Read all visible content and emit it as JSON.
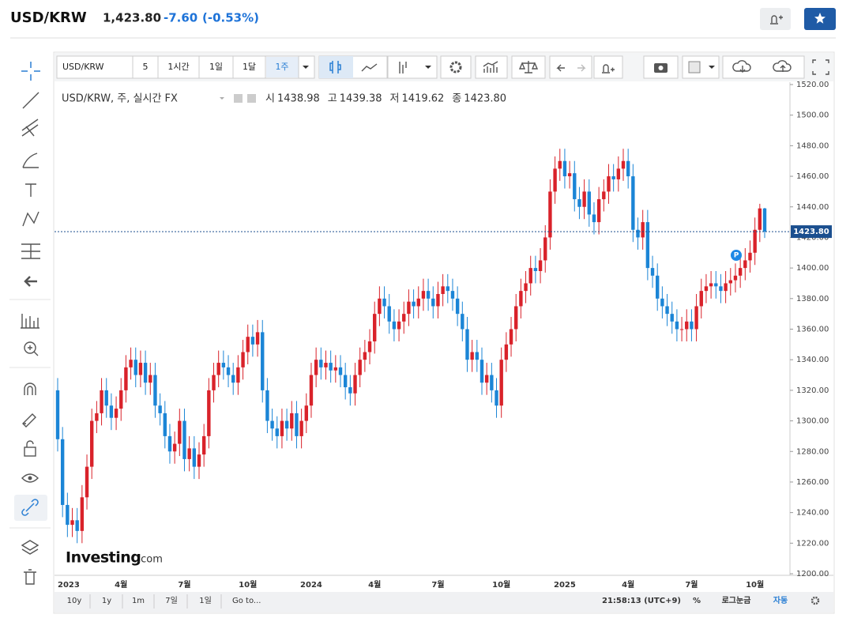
{
  "header": {
    "symbol": "USD/KRW",
    "price": "1,423.80",
    "change": "-7.60",
    "change_pct": "(-0.53%)"
  },
  "toolbar": {
    "symbol": "USD/KRW",
    "interval": "5",
    "ranges": [
      "1시간",
      "1일",
      "1달",
      "1주"
    ],
    "active_range": "1주"
  },
  "logo": [
    "Investing",
    ".com"
  ],
  "footer": {
    "periods": [
      "10y",
      "1y",
      "1m",
      "7일",
      "1일"
    ],
    "goto": "Go to...",
    "time": "21:58:13 (UTC+9)",
    "percent": "%",
    "log": "로그눈금",
    "auto": "자동"
  },
  "chart_data": {
    "type": "candlestick",
    "legend_title": "USD/KRW, 주, 실시간 FX",
    "ohlc_legend": [
      {
        "label": "시",
        "value": "1438.98"
      },
      {
        "label": "고",
        "value": "1439.38"
      },
      {
        "label": "저",
        "value": "1419.62"
      },
      {
        "label": "종",
        "value": "1423.80"
      }
    ],
    "last_price_label": "1423.80",
    "up_color": "#d9222a",
    "down_color": "#1b85d6",
    "categories": [
      "2023",
      null,
      null,
      null,
      null,
      null,
      null,
      null,
      null,
      null,
      null,
      null,
      null,
      "4월",
      null,
      null,
      null,
      null,
      null,
      null,
      null,
      null,
      null,
      null,
      null,
      null,
      "7월",
      null,
      null,
      null,
      null,
      null,
      null,
      null,
      null,
      null,
      null,
      null,
      null,
      "10월",
      null,
      null,
      null,
      null,
      null,
      null,
      null,
      null,
      null,
      null,
      null,
      null,
      "2024",
      null,
      null,
      null,
      null,
      null,
      null,
      null,
      null,
      null,
      null,
      null,
      null,
      "4월",
      null,
      null,
      null,
      null,
      null,
      null,
      null,
      null,
      null,
      null,
      null,
      null,
      "7월",
      null,
      null,
      null,
      null,
      null,
      null,
      null,
      null,
      null,
      null,
      null,
      null,
      "10월",
      null,
      null,
      null,
      null,
      null,
      null,
      null,
      null,
      null,
      null,
      null,
      null,
      "2025",
      null,
      null,
      null,
      null,
      null,
      null,
      null,
      null,
      null,
      null,
      null,
      null,
      "4월",
      null,
      null,
      null,
      null,
      null,
      null,
      null,
      null,
      null,
      null,
      null,
      null,
      "7월",
      null,
      null,
      null,
      null,
      null,
      null,
      null,
      null,
      null,
      null,
      null,
      null,
      "10월",
      null,
      null
    ],
    "open": [
      1320,
      1288,
      1245,
      1232,
      1235,
      1228,
      1250,
      1270,
      1300,
      1305,
      1320,
      1310,
      1302,
      1308,
      1320,
      1335,
      1340,
      1330,
      1338,
      1325,
      1330,
      1310,
      1305,
      1290,
      1280,
      1285,
      1300,
      1275,
      1282,
      1270,
      1278,
      1290,
      1320,
      1330,
      1338,
      1335,
      1330,
      1325,
      1335,
      1345,
      1355,
      1350,
      1358,
      1320,
      1300,
      1295,
      1290,
      1300,
      1295,
      1305,
      1290,
      1300,
      1310,
      1330,
      1340,
      1335,
      1338,
      1333,
      1335,
      1330,
      1322,
      1318,
      1330,
      1340,
      1345,
      1352,
      1370,
      1380,
      1375,
      1365,
      1360,
      1365,
      1370,
      1378,
      1375,
      1380,
      1385,
      1380,
      1375,
      1383,
      1388,
      1385,
      1380,
      1370,
      1360,
      1340,
      1345,
      1340,
      1325,
      1330,
      1320,
      1310,
      1340,
      1350,
      1360,
      1375,
      1385,
      1390,
      1400,
      1398,
      1405,
      1420,
      1450,
      1465,
      1470,
      1460,
      1462,
      1445,
      1440,
      1450,
      1435,
      1430,
      1445,
      1450,
      1460,
      1458,
      1465,
      1470,
      1460,
      1425,
      1420,
      1430,
      1400,
      1395,
      1380,
      1375,
      1370,
      1365,
      1360,
      1360,
      1365,
      1360,
      1375,
      1385,
      1388,
      1390,
      1388,
      1385,
      1390,
      1392,
      1395,
      1400,
      1405,
      1410,
      1425,
      1438.98
    ],
    "high": [
      1328,
      1296,
      1253,
      1243,
      1243,
      1258,
      1278,
      1308,
      1313,
      1328,
      1328,
      1318,
      1316,
      1328,
      1343,
      1348,
      1348,
      1346,
      1346,
      1338,
      1338,
      1318,
      1313,
      1298,
      1293,
      1308,
      1308,
      1290,
      1290,
      1286,
      1298,
      1328,
      1338,
      1346,
      1346,
      1343,
      1338,
      1343,
      1353,
      1363,
      1363,
      1366,
      1366,
      1328,
      1308,
      1303,
      1308,
      1308,
      1313,
      1313,
      1308,
      1318,
      1338,
      1348,
      1348,
      1346,
      1346,
      1343,
      1343,
      1338,
      1330,
      1338,
      1348,
      1353,
      1360,
      1378,
      1388,
      1388,
      1383,
      1373,
      1373,
      1378,
      1386,
      1386,
      1388,
      1393,
      1393,
      1388,
      1391,
      1396,
      1396,
      1393,
      1388,
      1378,
      1368,
      1353,
      1353,
      1348,
      1338,
      1338,
      1328,
      1348,
      1358,
      1368,
      1383,
      1393,
      1398,
      1408,
      1408,
      1413,
      1428,
      1458,
      1473,
      1478,
      1478,
      1470,
      1470,
      1453,
      1458,
      1458,
      1443,
      1453,
      1458,
      1468,
      1468,
      1473,
      1478,
      1478,
      1468,
      1433,
      1438,
      1438,
      1408,
      1403,
      1388,
      1383,
      1378,
      1373,
      1368,
      1373,
      1373,
      1383,
      1393,
      1396,
      1398,
      1398,
      1396,
      1398,
      1400,
      1403,
      1408,
      1413,
      1418,
      1433,
      1442,
      1439.38
    ],
    "low": [
      1280,
      1237,
      1224,
      1224,
      1220,
      1220,
      1242,
      1262,
      1292,
      1297,
      1302,
      1294,
      1294,
      1300,
      1312,
      1327,
      1322,
      1322,
      1317,
      1317,
      1302,
      1297,
      1282,
      1272,
      1272,
      1277,
      1267,
      1267,
      1262,
      1262,
      1270,
      1282,
      1312,
      1322,
      1327,
      1322,
      1317,
      1317,
      1327,
      1337,
      1342,
      1342,
      1312,
      1292,
      1287,
      1282,
      1282,
      1287,
      1287,
      1282,
      1282,
      1292,
      1302,
      1322,
      1327,
      1327,
      1325,
      1325,
      1322,
      1314,
      1310,
      1310,
      1322,
      1332,
      1337,
      1344,
      1362,
      1367,
      1357,
      1352,
      1352,
      1357,
      1362,
      1367,
      1367,
      1372,
      1372,
      1367,
      1367,
      1375,
      1377,
      1372,
      1362,
      1352,
      1332,
      1332,
      1332,
      1317,
      1317,
      1312,
      1302,
      1302,
      1332,
      1342,
      1352,
      1367,
      1377,
      1382,
      1390,
      1390,
      1397,
      1412,
      1442,
      1457,
      1452,
      1452,
      1437,
      1432,
      1432,
      1427,
      1422,
      1422,
      1437,
      1442,
      1450,
      1450,
      1457,
      1452,
      1417,
      1412,
      1412,
      1392,
      1387,
      1372,
      1367,
      1362,
      1357,
      1352,
      1352,
      1352,
      1352,
      1352,
      1367,
      1377,
      1380,
      1380,
      1377,
      1377,
      1382,
      1384,
      1387,
      1392,
      1397,
      1402,
      1417,
      1419.62
    ],
    "close": [
      1288,
      1245,
      1232,
      1235,
      1228,
      1250,
      1270,
      1300,
      1305,
      1320,
      1310,
      1302,
      1308,
      1320,
      1335,
      1340,
      1330,
      1338,
      1325,
      1330,
      1310,
      1305,
      1290,
      1280,
      1285,
      1300,
      1275,
      1282,
      1270,
      1278,
      1290,
      1320,
      1330,
      1338,
      1335,
      1330,
      1325,
      1335,
      1345,
      1355,
      1350,
      1358,
      1320,
      1300,
      1295,
      1290,
      1300,
      1295,
      1305,
      1290,
      1300,
      1310,
      1330,
      1340,
      1335,
      1338,
      1333,
      1335,
      1330,
      1322,
      1318,
      1330,
      1340,
      1345,
      1352,
      1370,
      1380,
      1375,
      1365,
      1360,
      1365,
      1370,
      1378,
      1375,
      1380,
      1385,
      1380,
      1375,
      1383,
      1388,
      1385,
      1380,
      1370,
      1360,
      1340,
      1345,
      1340,
      1325,
      1330,
      1320,
      1310,
      1340,
      1350,
      1360,
      1375,
      1385,
      1390,
      1400,
      1398,
      1405,
      1420,
      1450,
      1465,
      1470,
      1460,
      1462,
      1445,
      1440,
      1450,
      1435,
      1430,
      1445,
      1450,
      1460,
      1458,
      1465,
      1470,
      1460,
      1425,
      1420,
      1430,
      1400,
      1395,
      1380,
      1375,
      1370,
      1365,
      1360,
      1360,
      1365,
      1360,
      1375,
      1385,
      1388,
      1390,
      1388,
      1385,
      1390,
      1392,
      1395,
      1400,
      1405,
      1410,
      1425,
      1438.98,
      1423.8
    ],
    "ylim": [
      1200,
      1520
    ],
    "yticks": [
      {
        "value": 1200,
        "label": "1200.00"
      },
      {
        "value": 1220,
        "label": "1220.00"
      },
      {
        "value": 1240,
        "label": "1240.00"
      },
      {
        "value": 1260,
        "label": "1260.00"
      },
      {
        "value": 1280,
        "label": "1280.00"
      },
      {
        "value": 1300,
        "label": "1300.00"
      },
      {
        "value": 1320,
        "label": "1320.00"
      },
      {
        "value": 1340,
        "label": "1340.00"
      },
      {
        "value": 1360,
        "label": "1360.00"
      },
      {
        "value": 1380,
        "label": "1380.00"
      },
      {
        "value": 1400,
        "label": "1400.00"
      },
      {
        "value": 1420,
        "label": "1420.00"
      },
      {
        "value": 1440,
        "label": "1440.00"
      },
      {
        "value": 1460,
        "label": "1460.00"
      },
      {
        "value": 1480,
        "label": "1480.00"
      },
      {
        "value": 1500,
        "label": "1500.00"
      },
      {
        "value": 1520,
        "label": "1520.00"
      }
    ],
    "grid": false
  }
}
